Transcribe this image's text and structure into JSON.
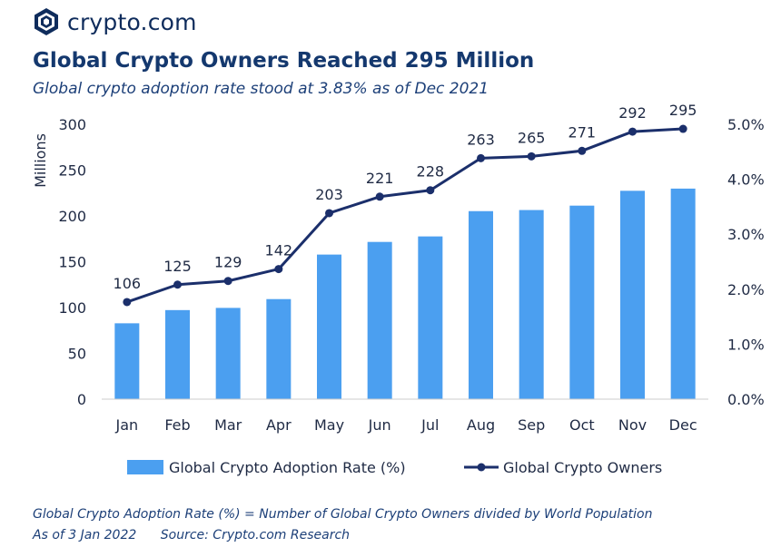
{
  "brand": {
    "name": "crypto.com",
    "logo_icon": "crypto-lion-shield-icon"
  },
  "title": "Global Crypto Owners Reached 295 Million",
  "subtitle": "Global crypto adoption rate stood at 3.83% as of Dec 2021",
  "notes": {
    "definition": "Global Crypto Adoption Rate (%) = Number of Global Crypto Owners divided by World Population",
    "as_of": "As of 3 Jan 2022",
    "source": "Source: Crypto.com Research"
  },
  "colors": {
    "bar": "#4b9ff0",
    "line": "#1b2f6b",
    "text": "#1f2a44",
    "axis": "#cccccc"
  },
  "chart_data": {
    "type": "bar+line",
    "categories": [
      "Jan",
      "Feb",
      "Mar",
      "Apr",
      "May",
      "Jun",
      "Jul",
      "Aug",
      "Sep",
      "Oct",
      "Nov",
      "Dec"
    ],
    "series": [
      {
        "name": "Global Crypto Adoption Rate (%)",
        "type": "bar",
        "axis": "right",
        "values": [
          1.38,
          1.62,
          1.66,
          1.82,
          2.63,
          2.86,
          2.96,
          3.42,
          3.44,
          3.52,
          3.79,
          3.83
        ]
      },
      {
        "name": "Global Crypto Owners",
        "type": "line",
        "axis": "left",
        "values": [
          106,
          125,
          129,
          142,
          203,
          221,
          228,
          263,
          265,
          271,
          292,
          295
        ],
        "labels": [
          "106",
          "125",
          "129",
          "142",
          "203",
          "221",
          "228",
          "263",
          "265",
          "271",
          "292",
          "295"
        ]
      }
    ],
    "y_left": {
      "label": "Millions",
      "min": 0,
      "max": 300,
      "ticks": [
        0,
        50,
        100,
        150,
        200,
        250,
        300
      ],
      "tick_labels": [
        "0",
        "50",
        "100",
        "150",
        "200",
        "250",
        "300"
      ]
    },
    "y_right": {
      "label": "",
      "min": 0,
      "max": 5,
      "ticks": [
        0,
        1,
        2,
        3,
        4,
        5
      ],
      "tick_labels": [
        "0.0%",
        "1.0%",
        "2.0%",
        "3.0%",
        "4.0%",
        "5.0%"
      ]
    },
    "legend": {
      "position": "bottom",
      "entries": [
        "Global Crypto Adoption Rate (%)",
        "Global Crypto Owners"
      ]
    },
    "grid": false
  }
}
